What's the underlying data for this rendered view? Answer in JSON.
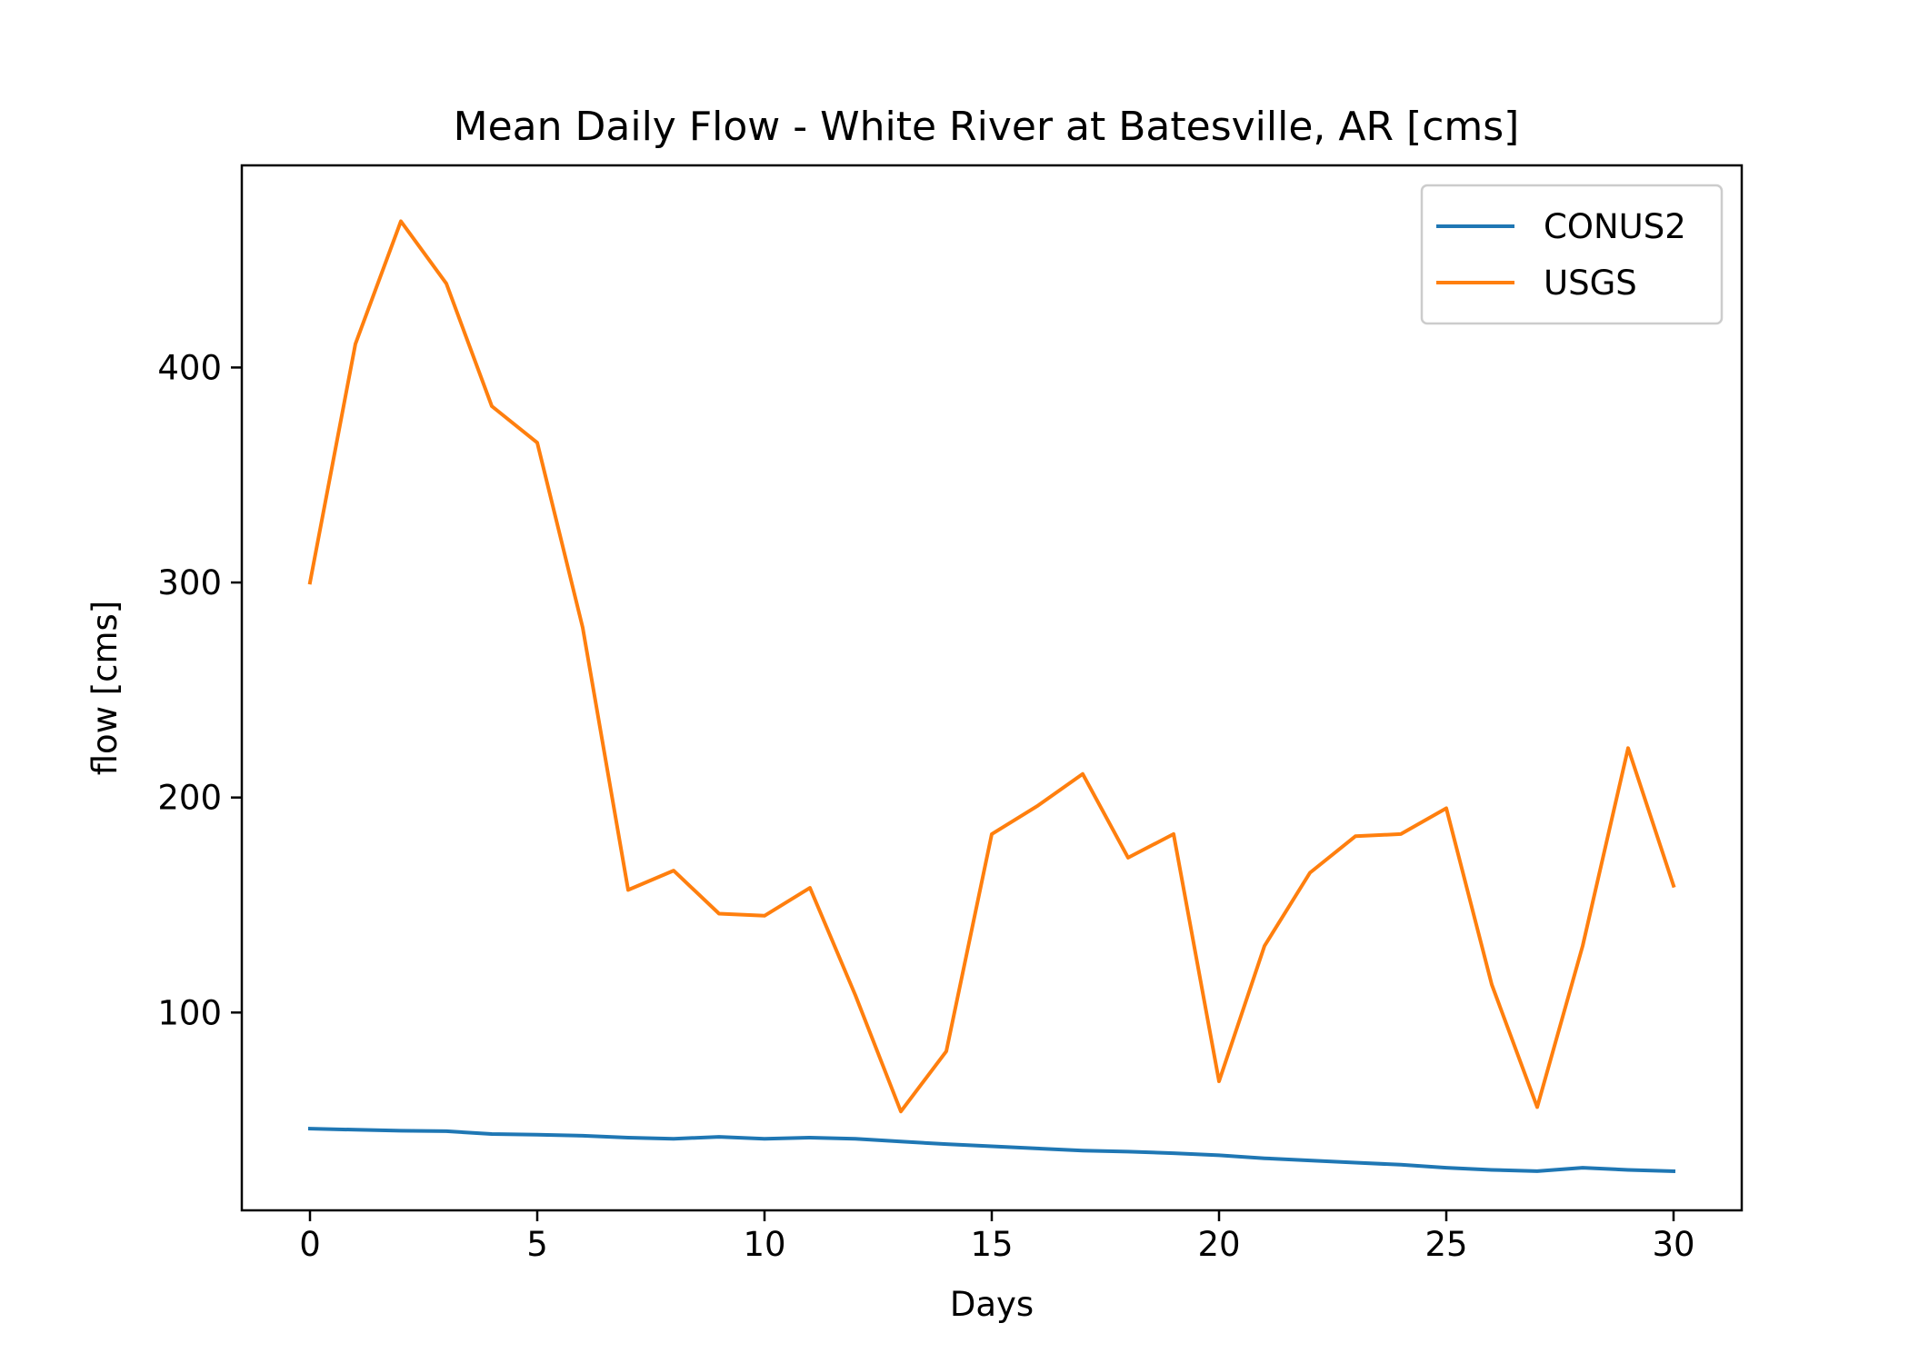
{
  "chart_data": {
    "type": "line",
    "title": "Mean Daily Flow - White River at Batesville, AR [cms]",
    "xlabel": "Days",
    "ylabel": "flow [cms]",
    "xlim": [
      -1.5,
      31.5
    ],
    "ylim": [
      8,
      494
    ],
    "xticks": [
      0,
      5,
      10,
      15,
      20,
      25,
      30
    ],
    "yticks": [
      100,
      200,
      300,
      400
    ],
    "grid": false,
    "legend_position": "top-right",
    "x": [
      0,
      1,
      2,
      3,
      4,
      5,
      6,
      7,
      8,
      9,
      10,
      11,
      12,
      13,
      14,
      15,
      16,
      17,
      18,
      19,
      20,
      21,
      22,
      23,
      24,
      25,
      26,
      27,
      28,
      29,
      30
    ],
    "series": [
      {
        "name": "CONUS2",
        "color": "#1f77b4",
        "values": [
          46,
          45.5,
          45,
          44.8,
          43.5,
          43.2,
          42.7,
          41.8,
          41.3,
          42.2,
          41.3,
          41.8,
          41.3,
          40,
          38.8,
          37.8,
          36.8,
          35.8,
          35.3,
          34.6,
          33.6,
          32.2,
          31.2,
          30.2,
          29.2,
          27.8,
          26.8,
          26.2,
          27.8,
          26.8,
          26.2
        ]
      },
      {
        "name": "USGS",
        "color": "#ff7f0e",
        "values": [
          300,
          411,
          468,
          439,
          382,
          365,
          279,
          157,
          166,
          146,
          145,
          158,
          108,
          54,
          82,
          183,
          196,
          211,
          172,
          183,
          68,
          131,
          165,
          182,
          183,
          195,
          113,
          56,
          131,
          223,
          159
        ]
      }
    ]
  }
}
